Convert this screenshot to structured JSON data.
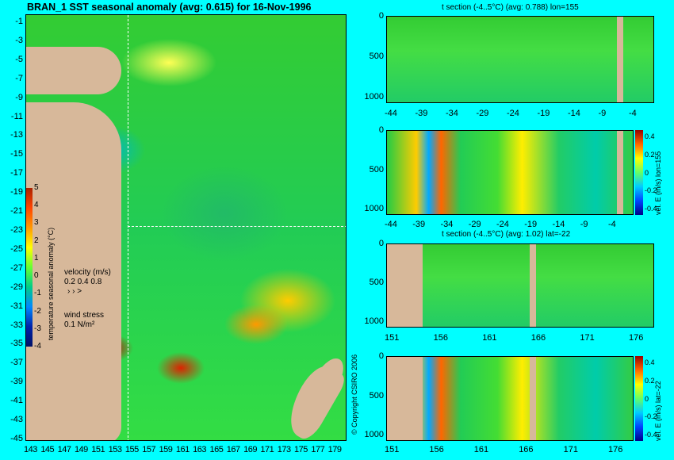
{
  "map": {
    "title": "BRAN_1 SST seasonal anomaly (avg: 0.615) for 16-Nov-1996",
    "lat_ticks": [
      "-1",
      "-3",
      "-5",
      "-7",
      "-9",
      "-11",
      "-13",
      "-15",
      "-17",
      "-19",
      "-21",
      "-23",
      "-25",
      "-27",
      "-29",
      "-31",
      "-33",
      "-35",
      "-37",
      "-39",
      "-41",
      "-43",
      "-45"
    ],
    "lon_ticks": [
      "143",
      "145",
      "147",
      "149",
      "151",
      "153",
      "155",
      "157",
      "159",
      "161",
      "163",
      "165",
      "167",
      "169",
      "171",
      "173",
      "175",
      "177",
      "179"
    ],
    "colorbar_ticks": [
      "5",
      "4",
      "3",
      "2",
      "1",
      "0",
      "-1",
      "-2",
      "-3",
      "-4"
    ],
    "colorbar_label": "temperature seasonal anomaly (°C)",
    "velocity_label": "velocity (m/s)",
    "velocity_scale": "0.2 0.4 0.8",
    "wind_label": "wind stress",
    "wind_scale": "0.1 N/m²",
    "colors": {
      "background": "#00ffff",
      "land": "#d7b89a",
      "anomaly_mid": "#22cc44",
      "warm": "#ff8800",
      "cold": "#0044cc"
    }
  },
  "copyright": "© Copyright CSIRO 2006",
  "panels": [
    {
      "title": "t section (-4..5°C) (avg: 0.788) lon=155",
      "y_ticks": [
        "0",
        "500",
        "1000"
      ],
      "x_ticks": [
        "-44",
        "-39",
        "-34",
        "-29",
        "-24",
        "-19",
        "-14",
        "-9",
        "-4"
      ],
      "colorbar": false
    },
    {
      "title": "",
      "y_ticks": [
        "0",
        "500",
        "1000"
      ],
      "x_ticks": [
        "-44",
        "-39",
        "-34",
        "-29",
        "-24",
        "-19",
        "-14",
        "-9",
        "-4"
      ],
      "colorbar": true,
      "colorbar_ticks": [
        "0.4",
        "0.2",
        "0",
        "-0.2",
        "-0.4"
      ],
      "colorbar_label": "vel. E (m/s) lon=155"
    },
    {
      "title": "t section (-4..5°C) (avg: 1.02) lat=-22",
      "y_ticks": [
        "0",
        "500",
        "1000"
      ],
      "x_ticks": [
        "151",
        "156",
        "161",
        "166",
        "171",
        "176"
      ],
      "colorbar": false
    },
    {
      "title": "",
      "y_ticks": [
        "0",
        "500",
        "1000"
      ],
      "x_ticks": [
        "151",
        "156",
        "161",
        "166",
        "171",
        "176"
      ],
      "colorbar": true,
      "colorbar_ticks": [
        "0.4",
        "0.2",
        "0",
        "-0.2",
        "-0.4"
      ],
      "colorbar_label": "vel. E (m/s) lat=-22"
    }
  ]
}
